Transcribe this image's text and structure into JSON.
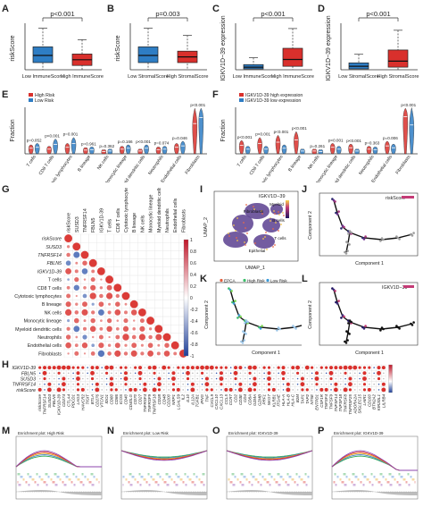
{
  "colors": {
    "blue": "#2e7dc4",
    "red": "#d9302c",
    "pink": "#e9a0a4",
    "dotred": "#d9302c",
    "dotblue": "#3b5fb0"
  },
  "panel_letters": [
    "A",
    "B",
    "C",
    "D",
    "E",
    "F",
    "G",
    "H",
    "I",
    "J",
    "K",
    "L",
    "M",
    "N",
    "O",
    "P"
  ],
  "chart_data": [
    {
      "panel": "A",
      "type": "box",
      "pvalue": "p<0.001",
      "ylabel": "riskScore",
      "categories": [
        "Low ImmuneScore",
        "High ImmuneScore"
      ],
      "series": [
        {
          "q1": 0.5,
          "median": 1.0,
          "q3": 1.6,
          "lo": 0.0,
          "hi": 2.9
        },
        {
          "q1": 0.3,
          "median": 0.7,
          "q3": 1.1,
          "lo": 0.0,
          "hi": 2.1
        }
      ],
      "ylim": [
        0,
        3
      ]
    },
    {
      "panel": "B",
      "type": "box",
      "pvalue": "p=0.003",
      "ylabel": "riskScore",
      "categories": [
        "Low StromalScore",
        "High StromalScore"
      ],
      "series": [
        {
          "q1": 0.5,
          "median": 1.0,
          "q3": 1.6,
          "lo": 0.0,
          "hi": 2.9
        },
        {
          "q1": 0.5,
          "median": 0.9,
          "q3": 1.3,
          "lo": 0.0,
          "hi": 2.4
        }
      ],
      "ylim": [
        0,
        3
      ]
    },
    {
      "panel": "C",
      "type": "box",
      "pvalue": "p<0.001",
      "ylabel": "IGKV1D−39 expression",
      "categories": [
        "Low ImmuneScore",
        "High ImmuneScore"
      ],
      "series": [
        {
          "q1": 0.1,
          "median": 0.3,
          "q3": 0.6,
          "lo": 0.0,
          "hi": 1.4
        },
        {
          "q1": 0.4,
          "median": 1.2,
          "q3": 2.5,
          "lo": 0.0,
          "hi": 4.8
        }
      ],
      "ylim": [
        0,
        5
      ]
    },
    {
      "panel": "D",
      "type": "box",
      "pvalue": "p<0.001",
      "ylabel": "IGKV1D−39 expression",
      "categories": [
        "Low StromalScore",
        "High StromalScore"
      ],
      "series": [
        {
          "q1": 0.1,
          "median": 0.4,
          "q3": 0.8,
          "lo": 0.0,
          "hi": 1.8
        },
        {
          "q1": 0.3,
          "median": 1.0,
          "q3": 2.3,
          "lo": 0.0,
          "hi": 4.6
        }
      ],
      "ylim": [
        0,
        5
      ]
    },
    {
      "panel": "E",
      "type": "violin",
      "ylabel": "Fraction",
      "legend": [
        "High Risk",
        "Low Risk"
      ],
      "categories": [
        "T cells",
        "CD8 T cells",
        "Cytotoxic lymphocytes",
        "B lineage",
        "NK cells",
        "Monocytic lineage",
        "Myeloid dendritic cells",
        "Neutrophils",
        "Endothelial cells",
        "Fibroblasts"
      ],
      "pvalues": [
        "p=0.052",
        "p<0.001",
        "p=0.001",
        "p=0.961",
        "p=0.362",
        "p=0.166",
        "p<0.001",
        "p=0.074",
        "p=0.046",
        "p<0.001"
      ],
      "series": [
        {
          "name": "High Risk",
          "values": [
            0.12,
            0.1,
            0.14,
            0.08,
            0.05,
            0.1,
            0.06,
            0.09,
            0.14,
            0.65
          ]
        },
        {
          "name": "Low Risk",
          "values": [
            0.14,
            0.2,
            0.22,
            0.09,
            0.06,
            0.12,
            0.12,
            0.1,
            0.17,
            0.78
          ]
        }
      ]
    },
    {
      "panel": "F",
      "type": "violin",
      "ylabel": "Fraction",
      "legend": [
        "IGKV1D-39  high expression",
        "IGKV1D-39  low expression"
      ],
      "categories": [
        "T cells",
        "CD8 T cells",
        "Cytotoxic lymphocytes",
        "B lineage",
        "NK cells",
        "Monocytic lineage",
        "Myeloid dendritic cells",
        "Neutrophils",
        "Endothelial cells",
        "Fibroblasts"
      ],
      "pvalues": [
        "p<0.001",
        "p<0.001",
        "p<0.001",
        "p<0.001",
        "p=0.261",
        "p<0.001",
        "p<0.001",
        "p=0.363",
        "p=0.006",
        "p<0.001"
      ],
      "series": [
        {
          "name": "high",
          "values": [
            0.18,
            0.22,
            0.25,
            0.3,
            0.06,
            0.14,
            0.13,
            0.1,
            0.17,
            0.8
          ]
        },
        {
          "name": "low",
          "values": [
            0.1,
            0.1,
            0.12,
            0.06,
            0.05,
            0.1,
            0.06,
            0.09,
            0.13,
            0.62
          ]
        }
      ]
    },
    {
      "panel": "G",
      "type": "heatmap",
      "title": "correlation",
      "labels": [
        "riskScore",
        "SUSD3",
        "TNFRSF14",
        "FBLN5",
        "IGKV1D-39",
        "T cells",
        "CD8 T cells",
        "Cytotoxic lymphocytes",
        "B lineage",
        "NK cells",
        "Monocytic lineage",
        "Myeloid dendritic cells",
        "Neutrophils",
        "Endothelial cells",
        "Fibroblasts"
      ],
      "scale": [
        "1",
        "0.8",
        "0.6",
        "0.4",
        "0.2",
        "0",
        "-0.2",
        "-0.4",
        "-0.6",
        "-0.8",
        "-1"
      ]
    },
    {
      "panel": "H",
      "type": "heatmap",
      "rows": [
        "IGKV1D-39",
        "FBLN5",
        "SUSD3",
        "TNFRSF14",
        "riskScore"
      ],
      "columns": [
        "riskScore",
        "TNFRSF14",
        "SUSD3",
        "FBLN5",
        "IGKV1D-39",
        "CD274",
        "CTLA4",
        "PDCD1",
        "LAG3",
        "HAVCR2",
        "TIGIT",
        "BTLA",
        "CD276",
        "VTCN1",
        "IDO1",
        "CD80",
        "CD86",
        "ICOS",
        "CD40",
        "CD40LG",
        "CD70",
        "CD27",
        "TNFRSF4",
        "TNFRSF9",
        "TNFRSF18",
        "CD28",
        "CD48",
        "CD200",
        "NRP1",
        "LGALS9",
        "IL2",
        "IL10",
        "IL12A",
        "TGFB1",
        "IFNG",
        "TNF",
        "CXCL9",
        "CXCL10",
        "CXCL13",
        "CCL5",
        "CCR7",
        "CD2",
        "CD3E",
        "CD4",
        "CD8A",
        "GZMA",
        "GZMB",
        "PRF1",
        "NKG7",
        "KLRB1",
        "ITGAE",
        "HLA-A",
        "HLA-B",
        "HLA-C",
        "B2M",
        "TAP1",
        "TAP2",
        "NT5E",
        "ENTPD1",
        "CSF1R",
        "TNFSF4",
        "TNFSF9",
        "TNFSF14",
        "TNFSF18",
        "TNFRSF8",
        "TNFRSF25",
        "ADORA2A",
        "SIGLEC15",
        "LAIR1",
        "CD160",
        "BTN2A2",
        "KIR2DL1",
        "LILRB4"
      ],
      "scale": [
        "0.6",
        "0.4",
        "0.2",
        "0",
        "-0.2",
        "-0.4"
      ]
    }
  ],
  "umap": {
    "title": "IGKV1D−39",
    "xlabel": "UMAP_1",
    "ylabel": "UMAP_2",
    "clusters": [
      "Myeloid",
      "Fibroblasts",
      "B cells",
      "T cells",
      "Epithelial"
    ]
  },
  "traj_j": {
    "title": "riskScore",
    "xlabel": "Component 1",
    "ylabel": "Component 2"
  },
  "traj_k": {
    "legend": [
      "EPCA",
      "High Risk",
      "Low Risk"
    ],
    "xlabel": "Component 1",
    "ylabel": "Component 2"
  },
  "traj_l": {
    "title": "IGKV1D−39",
    "xlabel": "Component 1",
    "ylabel": "Component 2"
  },
  "gsea": [
    {
      "panel": "M",
      "title": "Enrichment plot: High Risk"
    },
    {
      "panel": "N",
      "title": "Enrichment plot: Low Risk"
    },
    {
      "panel": "O",
      "title": "Enrichment plot: IGKV1D-39"
    },
    {
      "panel": "P",
      "title": "Enrichment plot: IGKV1D-39"
    }
  ]
}
